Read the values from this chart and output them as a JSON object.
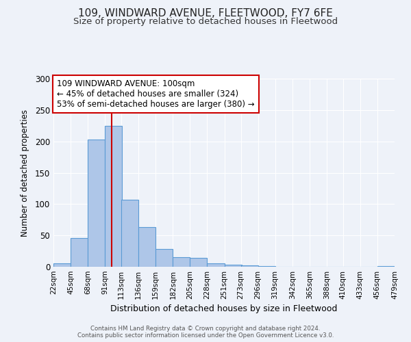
{
  "title": "109, WINDWARD AVENUE, FLEETWOOD, FY7 6FE",
  "subtitle": "Size of property relative to detached houses in Fleetwood",
  "xlabel": "Distribution of detached houses by size in Fleetwood",
  "ylabel": "Number of detached properties",
  "bin_edges": [
    22,
    45,
    68,
    91,
    113,
    136,
    159,
    182,
    205,
    228,
    251,
    273,
    296,
    319,
    342,
    365,
    388,
    410,
    433,
    456,
    479
  ],
  "bin_labels": [
    "22sqm",
    "45sqm",
    "68sqm",
    "91sqm",
    "113sqm",
    "136sqm",
    "159sqm",
    "182sqm",
    "205sqm",
    "228sqm",
    "251sqm",
    "273sqm",
    "296sqm",
    "319sqm",
    "342sqm",
    "365sqm",
    "388sqm",
    "410sqm",
    "433sqm",
    "456sqm",
    "479sqm"
  ],
  "counts": [
    5,
    46,
    203,
    225,
    107,
    63,
    28,
    15,
    14,
    5,
    3,
    2,
    1,
    0,
    0,
    0,
    0,
    0,
    0,
    1
  ],
  "bar_facecolor": "#aec6e8",
  "bar_edgecolor": "#5b9bd5",
  "property_line_x": 100,
  "property_line_color": "#cc0000",
  "annotation_line1": "109 WINDWARD AVENUE: 100sqm",
  "annotation_line2": "← 45% of detached houses are smaller (324)",
  "annotation_line3": "53% of semi-detached houses are larger (380) →",
  "ylim": [
    0,
    300
  ],
  "yticks": [
    0,
    50,
    100,
    150,
    200,
    250,
    300
  ],
  "background_color": "#eef2f9",
  "grid_color": "#ffffff",
  "footer_line1": "Contains HM Land Registry data © Crown copyright and database right 2024.",
  "footer_line2": "Contains public sector information licensed under the Open Government Licence v3.0.",
  "title_fontsize": 11,
  "subtitle_fontsize": 9.5
}
